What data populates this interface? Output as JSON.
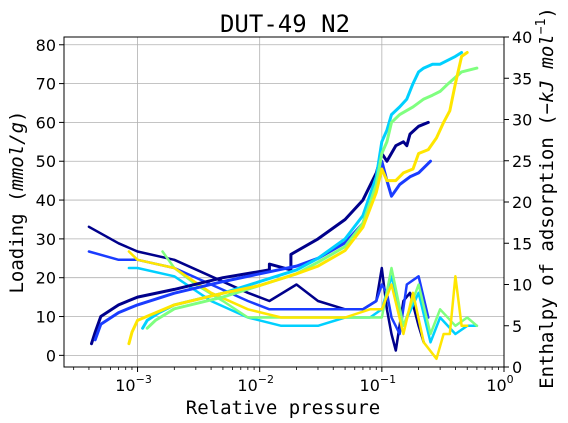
{
  "chart_data": {
    "type": "line",
    "title": "DUT-49 N2",
    "xlabel": "Relative pressure",
    "ylabel_left_text": "Loading (",
    "ylabel_left_unit": "mmol/g",
    "ylabel_right_text": "Enthalpy of adsorption (",
    "ylabel_right_unit": "−kJ mol",
    "ylabel_right_exp": "−1",
    "close_paren": ")",
    "x_scale": "log",
    "xlim": [
      0.00025,
      1.0
    ],
    "ylim_left": [
      -3,
      82
    ],
    "ylim_right": [
      0,
      40
    ],
    "grid": true,
    "x_ticks": [
      {
        "value": 0.001,
        "base": "10",
        "exp": "−3"
      },
      {
        "value": 0.01,
        "base": "10",
        "exp": "−2"
      },
      {
        "value": 0.1,
        "base": "10",
        "exp": "−1"
      },
      {
        "value": 1,
        "base": "10",
        "exp": "0"
      }
    ],
    "y_left_ticks": [
      {
        "value": 0,
        "label": "0"
      },
      {
        "value": 10,
        "label": "10"
      },
      {
        "value": 20,
        "label": "20"
      },
      {
        "value": 30,
        "label": "30"
      },
      {
        "value": 40,
        "label": "40"
      },
      {
        "value": 50,
        "label": "50"
      },
      {
        "value": 60,
        "label": "60"
      },
      {
        "value": 70,
        "label": "70"
      },
      {
        "value": 80,
        "label": "80"
      }
    ],
    "y_right_ticks": [
      {
        "value": 0,
        "label": "0"
      },
      {
        "value": 5,
        "label": "5"
      },
      {
        "value": 10,
        "label": "10"
      },
      {
        "value": 15,
        "label": "15"
      },
      {
        "value": 20,
        "label": "20"
      },
      {
        "value": 25,
        "label": "25"
      },
      {
        "value": 30,
        "label": "30"
      },
      {
        "value": 35,
        "label": "35"
      },
      {
        "value": 40,
        "label": "40"
      }
    ],
    "isotherms": [
      {
        "color": "#00008b",
        "x": [
          0.00042,
          0.00045,
          0.0005,
          0.0007,
          0.001,
          0.002,
          0.005,
          0.012,
          0.012,
          0.018,
          0.018,
          0.03,
          0.05,
          0.07,
          0.09,
          0.1,
          0.11,
          0.13,
          0.15,
          0.16,
          0.17,
          0.2,
          0.24
        ],
        "y": [
          3,
          6,
          10,
          13,
          15,
          17,
          20,
          22,
          23.5,
          22,
          26,
          30,
          35,
          40,
          47,
          52,
          50,
          54,
          55,
          54,
          57,
          59,
          60
        ]
      },
      {
        "color": "#1a3cff",
        "x": [
          0.00045,
          0.0005,
          0.0007,
          0.001,
          0.002,
          0.005,
          0.01,
          0.02,
          0.03,
          0.05,
          0.07,
          0.09,
          0.1,
          0.11,
          0.12,
          0.14,
          0.17,
          0.2,
          0.25
        ],
        "y": [
          4,
          8,
          11,
          13,
          16,
          19,
          21,
          23,
          25,
          29,
          34,
          44,
          50,
          45,
          41,
          44,
          46,
          47,
          50
        ]
      },
      {
        "color": "#00d0ff",
        "x": [
          0.0011,
          0.0012,
          0.0015,
          0.002,
          0.005,
          0.01,
          0.02,
          0.03,
          0.05,
          0.07,
          0.09,
          0.1,
          0.11,
          0.12,
          0.14,
          0.16,
          0.18,
          0.2,
          0.22,
          0.26,
          0.3,
          0.4,
          0.45
        ],
        "y": [
          7,
          9,
          11,
          13,
          16,
          19,
          22,
          25,
          30,
          36,
          46,
          55,
          58,
          62,
          64,
          66,
          70,
          73,
          74,
          75,
          75,
          77,
          78
        ]
      },
      {
        "color": "#7fff7f",
        "x": [
          0.0012,
          0.0014,
          0.002,
          0.005,
          0.01,
          0.02,
          0.03,
          0.05,
          0.07,
          0.09,
          0.1,
          0.11,
          0.12,
          0.14,
          0.18,
          0.22,
          0.26,
          0.3,
          0.35,
          0.45,
          0.6
        ],
        "y": [
          7,
          9,
          12,
          15,
          18,
          21,
          24,
          28,
          34,
          44,
          52,
          55,
          60,
          62,
          64,
          66,
          67,
          68,
          70,
          73,
          74
        ]
      },
      {
        "color": "#ffe600",
        "x": [
          0.00085,
          0.0009,
          0.001,
          0.002,
          0.005,
          0.01,
          0.02,
          0.03,
          0.05,
          0.07,
          0.09,
          0.1,
          0.11,
          0.13,
          0.15,
          0.18,
          0.2,
          0.24,
          0.28,
          0.32,
          0.36,
          0.4,
          0.45,
          0.5
        ],
        "y": [
          3,
          6,
          9,
          13,
          16,
          18,
          21,
          23,
          27,
          33,
          42,
          48,
          45,
          45,
          47,
          48,
          52,
          53,
          56,
          60,
          63,
          70,
          77,
          78
        ]
      }
    ],
    "enthalpies": [
      {
        "color": "#00008b",
        "x": [
          0.0004,
          0.0007,
          0.001,
          0.002,
          0.004,
          0.008,
          0.012,
          0.02,
          0.03,
          0.05,
          0.07,
          0.09,
          0.1,
          0.11,
          0.12,
          0.13,
          0.15,
          0.17,
          0.2,
          0.22
        ],
        "y": [
          17,
          15,
          14,
          13,
          11,
          9,
          8,
          10,
          8,
          7,
          7,
          8,
          12,
          7,
          4,
          2,
          8,
          9,
          5,
          3
        ]
      },
      {
        "color": "#1a3cff",
        "x": [
          0.0004,
          0.0007,
          0.001,
          0.002,
          0.004,
          0.008,
          0.012,
          0.02,
          0.03,
          0.05,
          0.07,
          0.09,
          0.1,
          0.11,
          0.12,
          0.14,
          0.16,
          0.2,
          0.24
        ],
        "y": [
          14,
          13,
          13,
          12,
          10,
          8,
          7,
          7,
          7,
          7,
          7,
          8,
          10,
          9,
          6,
          4,
          10,
          11,
          6
        ]
      },
      {
        "color": "#00d0ff",
        "x": [
          0.00085,
          0.001,
          0.002,
          0.004,
          0.008,
          0.015,
          0.03,
          0.05,
          0.08,
          0.1,
          0.12,
          0.15,
          0.2,
          0.25,
          0.3,
          0.4,
          0.5,
          0.6
        ],
        "y": [
          12,
          12,
          11,
          8,
          6,
          5,
          5,
          6,
          6,
          7,
          11,
          5,
          9,
          3,
          6,
          4,
          5,
          5
        ]
      },
      {
        "color": "#7fff7f",
        "x": [
          0.0016,
          0.002,
          0.003,
          0.005,
          0.008,
          0.015,
          0.03,
          0.05,
          0.08,
          0.1,
          0.12,
          0.15,
          0.2,
          0.25,
          0.3,
          0.4,
          0.5,
          0.6
        ],
        "y": [
          14,
          12,
          10,
          8,
          6,
          6,
          6,
          6,
          6,
          6,
          12,
          5,
          10,
          4,
          7,
          5,
          6,
          5
        ]
      },
      {
        "color": "#ffe600",
        "x": [
          0.00085,
          0.001,
          0.002,
          0.004,
          0.008,
          0.015,
          0.03,
          0.05,
          0.08,
          0.1,
          0.12,
          0.15,
          0.18,
          0.22,
          0.28,
          0.32,
          0.36,
          0.4,
          0.45,
          0.5
        ],
        "y": [
          14,
          13,
          12,
          9,
          7,
          6,
          6,
          6,
          7,
          7,
          10,
          4,
          9,
          3,
          1,
          4,
          4,
          11,
          5,
          5
        ]
      }
    ]
  }
}
